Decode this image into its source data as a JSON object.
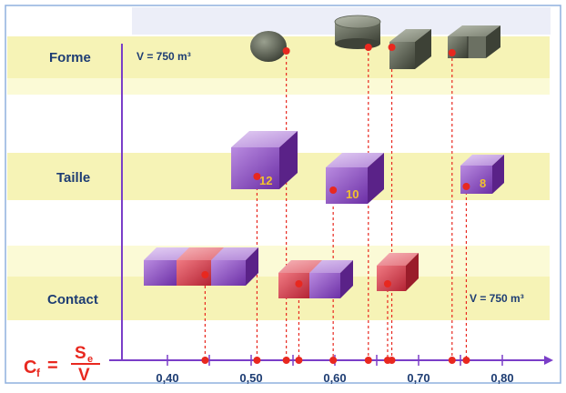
{
  "rows": {
    "forme": "Forme",
    "taille": "Taille",
    "contact": "Contact"
  },
  "volume_top": "V = 750 m³",
  "volume_bottom": "V = 750 m³",
  "formula": {
    "lhs": "C",
    "lhs_sub": "f",
    "eq": "=",
    "num": "S",
    "num_sub": "e",
    "den": "V"
  },
  "axis": {
    "ticks": [
      "0,40",
      "0,50",
      "0,60",
      "0,70",
      "0,80"
    ],
    "tick_values": [
      0.4,
      0.5,
      0.6,
      0.7,
      0.8
    ],
    "minor_ticks": [
      0.45,
      0.55,
      0.65,
      0.75
    ],
    "points": [
      0.445,
      0.507,
      0.542,
      0.557,
      0.598,
      0.64,
      0.663,
      0.668,
      0.74,
      0.757
    ]
  },
  "taille_labels": [
    "12",
    "10",
    "8"
  ],
  "colors": {
    "band": "#f6f3b6",
    "band_lt": "#fbfad6",
    "axis": "#7a3ec8",
    "row_label": "#1e3d73",
    "point": "#e8281f",
    "formula": "#e8281f",
    "tick_text": "#1e3d73",
    "purple": "#8a45c2",
    "red": "#d83a4a",
    "gray": "#5a5f52",
    "gold": "#f2c12e"
  }
}
